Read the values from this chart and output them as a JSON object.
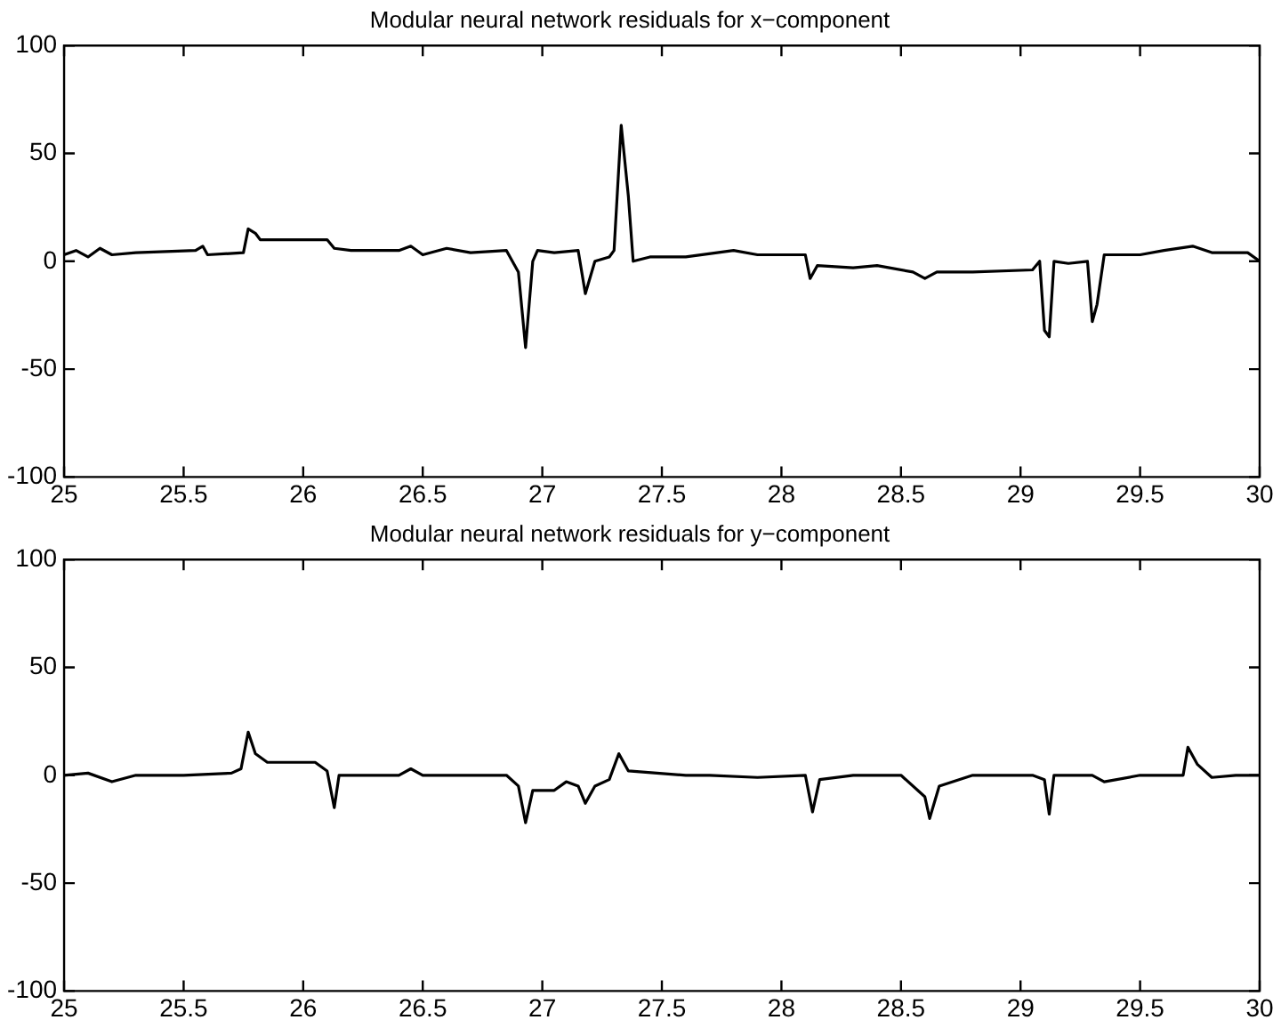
{
  "chart_data": [
    {
      "type": "line",
      "title": "Modular neural network residuals for x−component",
      "color": "#000000",
      "marker": "none",
      "line_style": "solid",
      "grid": false,
      "legend": false,
      "x": [
        25,
        25.05,
        25.1,
        25.15,
        25.2,
        25.3,
        25.55,
        25.58,
        25.6,
        25.75,
        25.77,
        25.8,
        25.82,
        26.1,
        26.13,
        26.2,
        26.4,
        26.45,
        26.5,
        26.6,
        26.7,
        26.85,
        26.9,
        26.93,
        26.96,
        26.98,
        27.05,
        27.15,
        27.18,
        27.22,
        27.28,
        27.3,
        27.33,
        27.36,
        27.38,
        27.45,
        27.6,
        27.8,
        27.9,
        28.1,
        28.12,
        28.15,
        28.3,
        28.4,
        28.55,
        28.6,
        28.65,
        28.8,
        29.05,
        29.08,
        29.1,
        29.12,
        29.14,
        29.2,
        29.28,
        29.3,
        29.32,
        29.35,
        29.5,
        29.6,
        29.72,
        29.8,
        29.95,
        30
      ],
      "values": [
        3,
        5,
        2,
        6,
        3,
        4,
        5,
        7,
        3,
        4,
        15,
        13,
        10,
        10,
        6,
        5,
        5,
        7,
        3,
        6,
        4,
        5,
        -5,
        -40,
        0,
        5,
        4,
        5,
        -15,
        0,
        2,
        5,
        63,
        30,
        0,
        2,
        2,
        5,
        3,
        3,
        -8,
        -2,
        -3,
        -2,
        -5,
        -8,
        -5,
        -5,
        -4,
        0,
        -32,
        -35,
        0,
        -1,
        0,
        -28,
        -20,
        3,
        3,
        5,
        7,
        4,
        4,
        0
      ],
      "xlim": [
        25,
        30
      ],
      "ylim": [
        -100,
        100
      ],
      "xticks": [
        25,
        25.5,
        26,
        26.5,
        27,
        27.5,
        28,
        28.5,
        29,
        29.5,
        30
      ],
      "yticks": [
        -100,
        -50,
        0,
        50,
        100
      ]
    },
    {
      "type": "line",
      "title": "Modular neural network residuals for y−component",
      "color": "#000000",
      "marker": "none",
      "line_style": "solid",
      "grid": false,
      "legend": false,
      "x": [
        25,
        25.1,
        25.2,
        25.3,
        25.5,
        25.7,
        25.74,
        25.77,
        25.8,
        25.85,
        26.05,
        26.1,
        26.13,
        26.15,
        26.4,
        26.45,
        26.5,
        26.85,
        26.9,
        26.93,
        26.96,
        27.05,
        27.1,
        27.15,
        27.18,
        27.22,
        27.28,
        27.32,
        27.36,
        27.6,
        27.7,
        27.9,
        28.1,
        28.13,
        28.16,
        28.3,
        28.5,
        28.6,
        28.62,
        28.66,
        28.8,
        29.05,
        29.1,
        29.12,
        29.14,
        29.3,
        29.35,
        29.5,
        29.68,
        29.7,
        29.74,
        29.8,
        29.9,
        30
      ],
      "values": [
        0,
        1,
        -3,
        0,
        0,
        1,
        3,
        20,
        10,
        6,
        6,
        2,
        -15,
        0,
        0,
        3,
        0,
        0,
        -5,
        -22,
        -7,
        -7,
        -3,
        -5,
        -13,
        -5,
        -2,
        10,
        2,
        0,
        0,
        -1,
        0,
        -17,
        -2,
        0,
        0,
        -10,
        -20,
        -5,
        0,
        0,
        -2,
        -18,
        0,
        0,
        -3,
        0,
        0,
        13,
        5,
        -1,
        0,
        0
      ],
      "xlim": [
        25,
        30
      ],
      "ylim": [
        -100,
        100
      ],
      "xticks": [
        25,
        25.5,
        26,
        26.5,
        27,
        27.5,
        28,
        28.5,
        29,
        29.5,
        30
      ],
      "yticks": [
        -100,
        -50,
        0,
        50,
        100
      ]
    }
  ]
}
